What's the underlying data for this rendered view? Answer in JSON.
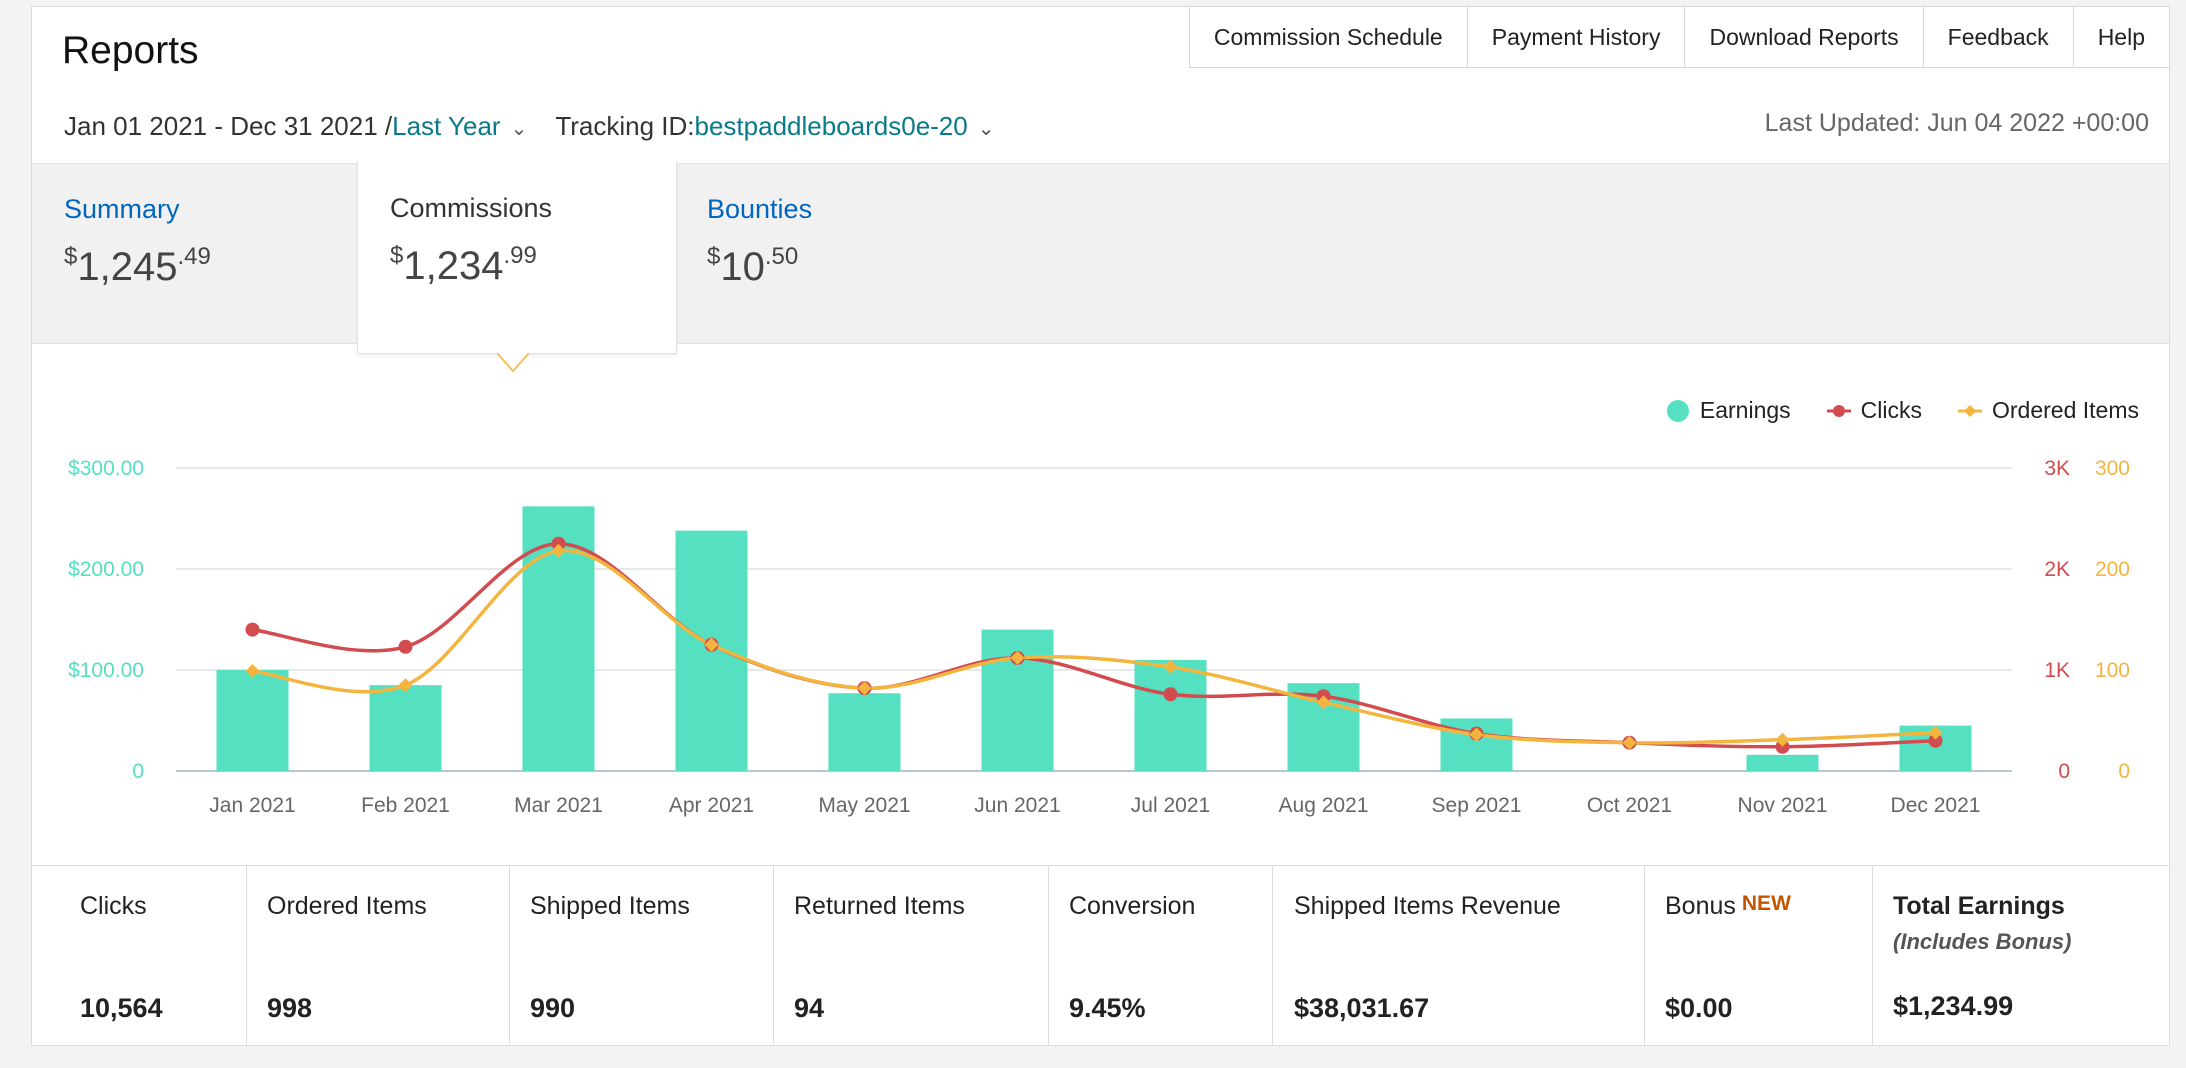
{
  "header": {
    "title": "Reports",
    "nav": [
      "Commission Schedule",
      "Payment History",
      "Download Reports",
      "Feedback",
      "Help"
    ],
    "date_range": "Jan 01 2021 - Dec 31 2021 / ",
    "date_preset": "Last Year",
    "tracking_label": "Tracking ID: ",
    "tracking_id": "bestpaddleboards0e-20",
    "last_updated": "Last Updated: Jun 04 2022 +00:00"
  },
  "tabs": {
    "summary": {
      "label": "Summary",
      "currency": "$",
      "whole": "1,245",
      "cents": ".49"
    },
    "commissions": {
      "label": "Commissions",
      "currency": "$",
      "whole": "1,234",
      "cents": ".99"
    },
    "bounties": {
      "label": "Bounties",
      "currency": "$",
      "whole": "10",
      "cents": ".50"
    }
  },
  "legend": {
    "earnings": "Earnings",
    "clicks": "Clicks",
    "ordered": "Ordered Items"
  },
  "colors": {
    "earnings": "#55e0c1",
    "clicks": "#d24b4e",
    "ordered": "#f4b53f",
    "link": "#087a8a",
    "summary_link": "#0066c0",
    "badge": "#c45500"
  },
  "chart_data": {
    "type": "bar",
    "categories": [
      "Jan 2021",
      "Feb 2021",
      "Mar 2021",
      "Apr 2021",
      "May 2021",
      "Jun 2021",
      "Jul 2021",
      "Aug 2021",
      "Sep 2021",
      "Oct 2021",
      "Nov 2021",
      "Dec 2021"
    ],
    "series": [
      {
        "name": "Earnings",
        "type": "bar",
        "axis": "left",
        "values": [
          100,
          85,
          262,
          238,
          77,
          140,
          110,
          87,
          52,
          0,
          16,
          45
        ]
      },
      {
        "name": "Clicks",
        "type": "line",
        "axis": "right1",
        "values": [
          1400,
          1230,
          2250,
          1250,
          820,
          1120,
          760,
          740,
          370,
          280,
          240,
          300
        ]
      },
      {
        "name": "Ordered Items",
        "type": "line",
        "axis": "right2",
        "values": [
          99,
          85,
          218,
          125,
          82,
          112,
          103,
          68,
          36,
          28,
          31,
          38
        ]
      }
    ],
    "left_axis": {
      "ticks": [
        "0",
        "$100.00",
        "$200.00",
        "$300.00"
      ],
      "ylim": [
        0,
        300
      ]
    },
    "right_axis_1": {
      "ticks": [
        "0",
        "1K",
        "2K",
        "3K"
      ],
      "ylim": [
        0,
        3000
      ]
    },
    "right_axis_2": {
      "ticks": [
        "0",
        "100",
        "200",
        "300"
      ],
      "ylim": [
        0,
        300
      ]
    },
    "grid": true,
    "legend_position": "top-right"
  },
  "stats": {
    "clicks": {
      "label": "Clicks",
      "value": "10,564"
    },
    "ordered": {
      "label": "Ordered Items",
      "value": "998"
    },
    "shipped": {
      "label": "Shipped Items",
      "value": "990"
    },
    "returned": {
      "label": "Returned Items",
      "value": "94"
    },
    "conversion": {
      "label": "Conversion",
      "value": "9.45%"
    },
    "revenue": {
      "label": "Shipped Items Revenue",
      "value": "$38,031.67"
    },
    "bonus": {
      "label": "Bonus",
      "badge": "NEW",
      "value": "$0.00"
    },
    "total": {
      "label": "Total Earnings",
      "sub": "(Includes Bonus)",
      "value": "$1,234.99"
    }
  }
}
